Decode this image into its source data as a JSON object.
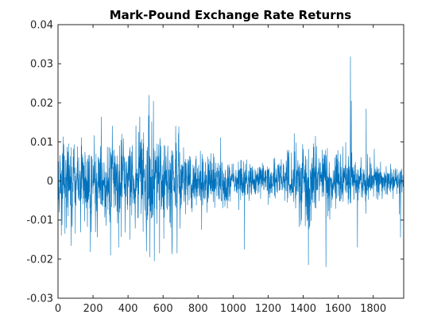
{
  "chart_data": {
    "type": "line",
    "title": "Mark-Pound Exchange Rate Returns",
    "xlabel": "",
    "ylabel": "",
    "xlim": [
      0,
      1974
    ],
    "ylim": [
      -0.03,
      0.04
    ],
    "x_ticks": [
      0,
      200,
      400,
      600,
      800,
      1000,
      1200,
      1400,
      1600,
      1800
    ],
    "y_ticks": [
      -0.03,
      -0.02,
      -0.01,
      0,
      0.01,
      0.02,
      0.03,
      0.04
    ],
    "x_tick_labels": [
      "0",
      "200",
      "400",
      "600",
      "800",
      "1000",
      "1200",
      "1400",
      "1600",
      "1800"
    ],
    "y_tick_labels": [
      "-0.03",
      "-0.02",
      "-0.01",
      "0",
      "0.01",
      "0.02",
      "0.03",
      "0.04"
    ],
    "grid": false,
    "series": [
      {
        "color": "#0072bd",
        "n_points": 1974,
        "volatility_profile": [
          {
            "x": 0,
            "std": 0.0045
          },
          {
            "x": 50,
            "std": 0.005
          },
          {
            "x": 100,
            "std": 0.0045
          },
          {
            "x": 200,
            "std": 0.005
          },
          {
            "x": 300,
            "std": 0.0055
          },
          {
            "x": 400,
            "std": 0.0055
          },
          {
            "x": 480,
            "std": 0.006
          },
          {
            "x": 540,
            "std": 0.0065
          },
          {
            "x": 600,
            "std": 0.0055
          },
          {
            "x": 700,
            "std": 0.0045
          },
          {
            "x": 800,
            "std": 0.0032
          },
          {
            "x": 900,
            "std": 0.003
          },
          {
            "x": 1000,
            "std": 0.0025
          },
          {
            "x": 1100,
            "std": 0.0022
          },
          {
            "x": 1200,
            "std": 0.0022
          },
          {
            "x": 1300,
            "std": 0.0028
          },
          {
            "x": 1400,
            "std": 0.0045
          },
          {
            "x": 1500,
            "std": 0.0045
          },
          {
            "x": 1600,
            "std": 0.0035
          },
          {
            "x": 1700,
            "std": 0.003
          },
          {
            "x": 1800,
            "std": 0.0025
          },
          {
            "x": 1974,
            "std": 0.002
          }
        ],
        "extremes": [
          {
            "x": 40,
            "y": -0.0135
          },
          {
            "x": 185,
            "y": -0.0182
          },
          {
            "x": 300,
            "y": -0.019
          },
          {
            "x": 360,
            "y": 0.0105
          },
          {
            "x": 410,
            "y": -0.015
          },
          {
            "x": 460,
            "y": 0.0125
          },
          {
            "x": 505,
            "y": -0.018
          },
          {
            "x": 520,
            "y": 0.022
          },
          {
            "x": 525,
            "y": -0.0195
          },
          {
            "x": 545,
            "y": 0.0205
          },
          {
            "x": 550,
            "y": -0.0205
          },
          {
            "x": 580,
            "y": -0.0185
          },
          {
            "x": 680,
            "y": -0.0185
          },
          {
            "x": 820,
            "y": -0.0125
          },
          {
            "x": 1065,
            "y": -0.0175
          },
          {
            "x": 1430,
            "y": -0.0215
          },
          {
            "x": 1470,
            "y": 0.0115
          },
          {
            "x": 1530,
            "y": -0.022
          },
          {
            "x": 1670,
            "y": 0.0318
          },
          {
            "x": 1675,
            "y": 0.0205
          },
          {
            "x": 1710,
            "y": -0.017
          },
          {
            "x": 1760,
            "y": 0.0185
          },
          {
            "x": 1950,
            "y": -0.0085
          }
        ]
      }
    ]
  }
}
